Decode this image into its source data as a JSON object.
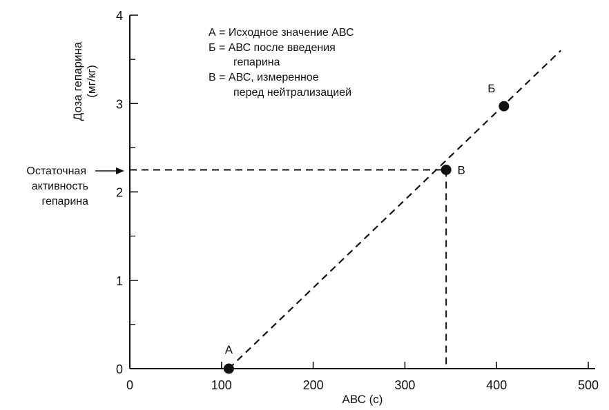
{
  "chart_data": {
    "type": "scatter",
    "xlabel": "АВС (с)",
    "ylabel_line1": "Доза гепарина",
    "ylabel_line2": "(мг/кг)",
    "xlim": [
      0,
      500
    ],
    "ylim": [
      0,
      4
    ],
    "x_ticks": [
      0,
      100,
      200,
      300,
      400,
      500
    ],
    "y_ticks": [
      0,
      1,
      2,
      3,
      4
    ],
    "y_minor_ticks": [
      0.5,
      1.5,
      2.5,
      3.5
    ],
    "grid": false,
    "points": [
      {
        "label": "А",
        "x": 108,
        "y": 0
      },
      {
        "label": "В",
        "x": 345,
        "y": 2.25
      },
      {
        "label": "Б",
        "x": 408,
        "y": 2.97
      }
    ],
    "trend_line": {
      "style": "dashed",
      "from": [
        108,
        0
      ],
      "to": [
        470,
        3.6
      ]
    },
    "residual_guide": {
      "style": "dashed",
      "level": 2.25,
      "at_x": 345
    },
    "legend_lines": [
      "А = Исходное значение АВС",
      "Б = АВС после введения",
      "гепарина",
      "В = АВС, измеренное",
      "перед нейтрализацией"
    ],
    "residual_label_lines": [
      "Остаточная",
      "активность",
      "гепарина"
    ]
  }
}
